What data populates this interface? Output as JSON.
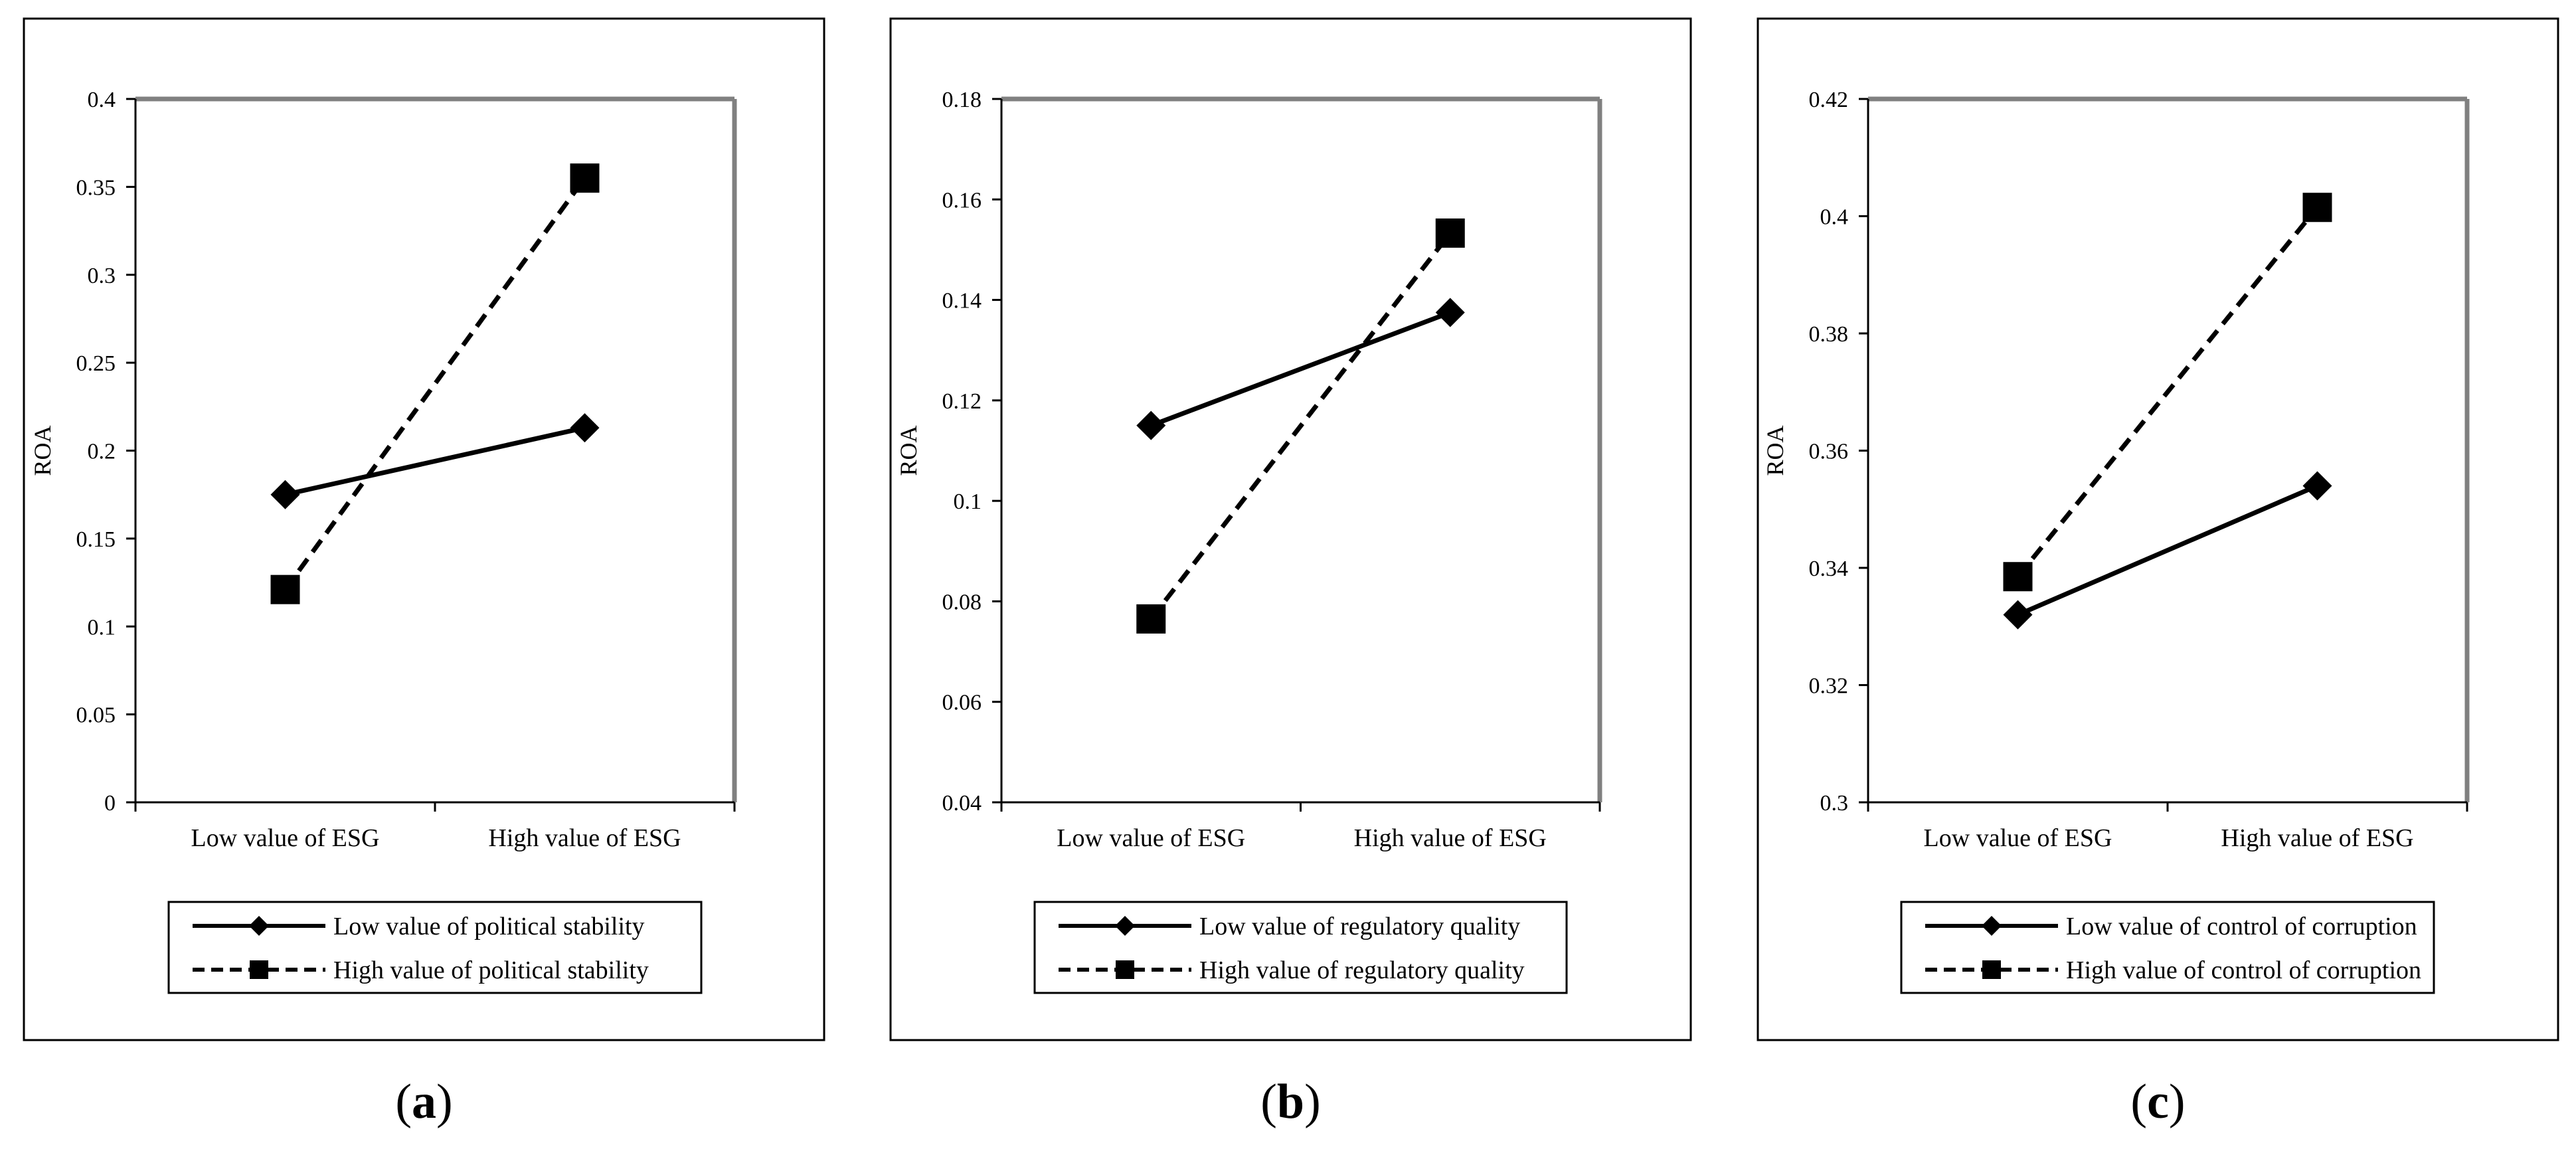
{
  "chart_data": [
    {
      "type": "line",
      "panel_label": "a",
      "categories": [
        "Low value of ESG",
        "High value of ESG"
      ],
      "ylabel": "ROA",
      "xlabel": "",
      "ylim": [
        0,
        0.4
      ],
      "yticks": [
        "0",
        "0.05",
        "0.1",
        "0.15",
        "0.2",
        "0.25",
        "0.3",
        "0.35",
        "0.4"
      ],
      "grid": false,
      "legend_position": "bottom",
      "series": [
        {
          "name": "Low value of political stability",
          "values": [
            0.175,
            0.213
          ],
          "line_style": "solid",
          "marker": "diamond"
        },
        {
          "name": "High value of political stability",
          "values": [
            0.121,
            0.355
          ],
          "line_style": "dashed",
          "marker": "square"
        }
      ]
    },
    {
      "type": "line",
      "panel_label": "b",
      "categories": [
        "Low value of ESG",
        "High value of ESG"
      ],
      "ylabel": "ROA",
      "xlabel": "",
      "ylim": [
        0.04,
        0.18
      ],
      "yticks": [
        "0.04",
        "0.06",
        "0.08",
        "0.1",
        "0.12",
        "0.14",
        "0.16",
        "0.18"
      ],
      "grid": false,
      "legend_position": "bottom",
      "series": [
        {
          "name": "Low value of regulatory quality",
          "values": [
            0.115,
            0.1375
          ],
          "line_style": "solid",
          "marker": "diamond"
        },
        {
          "name": "High value of regulatory quality",
          "values": [
            0.0765,
            0.1533
          ],
          "line_style": "dashed",
          "marker": "square"
        }
      ]
    },
    {
      "type": "line",
      "panel_label": "c",
      "categories": [
        "Low value of ESG",
        "High value of ESG"
      ],
      "ylabel": "ROA",
      "xlabel": "",
      "ylim": [
        0.3,
        0.42
      ],
      "yticks": [
        "0.3",
        "0.32",
        "0.34",
        "0.36",
        "0.38",
        "0.4",
        "0.42"
      ],
      "grid": false,
      "legend_position": "bottom",
      "series": [
        {
          "name": "Low value of control of corruption",
          "values": [
            0.332,
            0.354
          ],
          "line_style": "solid",
          "marker": "diamond"
        },
        {
          "name": "High value of control of corruption",
          "values": [
            0.3385,
            0.4015
          ],
          "line_style": "dashed",
          "marker": "square"
        }
      ]
    }
  ],
  "colors": {
    "line": "#000000",
    "plot_frame": "#808080",
    "background": "#ffffff"
  }
}
